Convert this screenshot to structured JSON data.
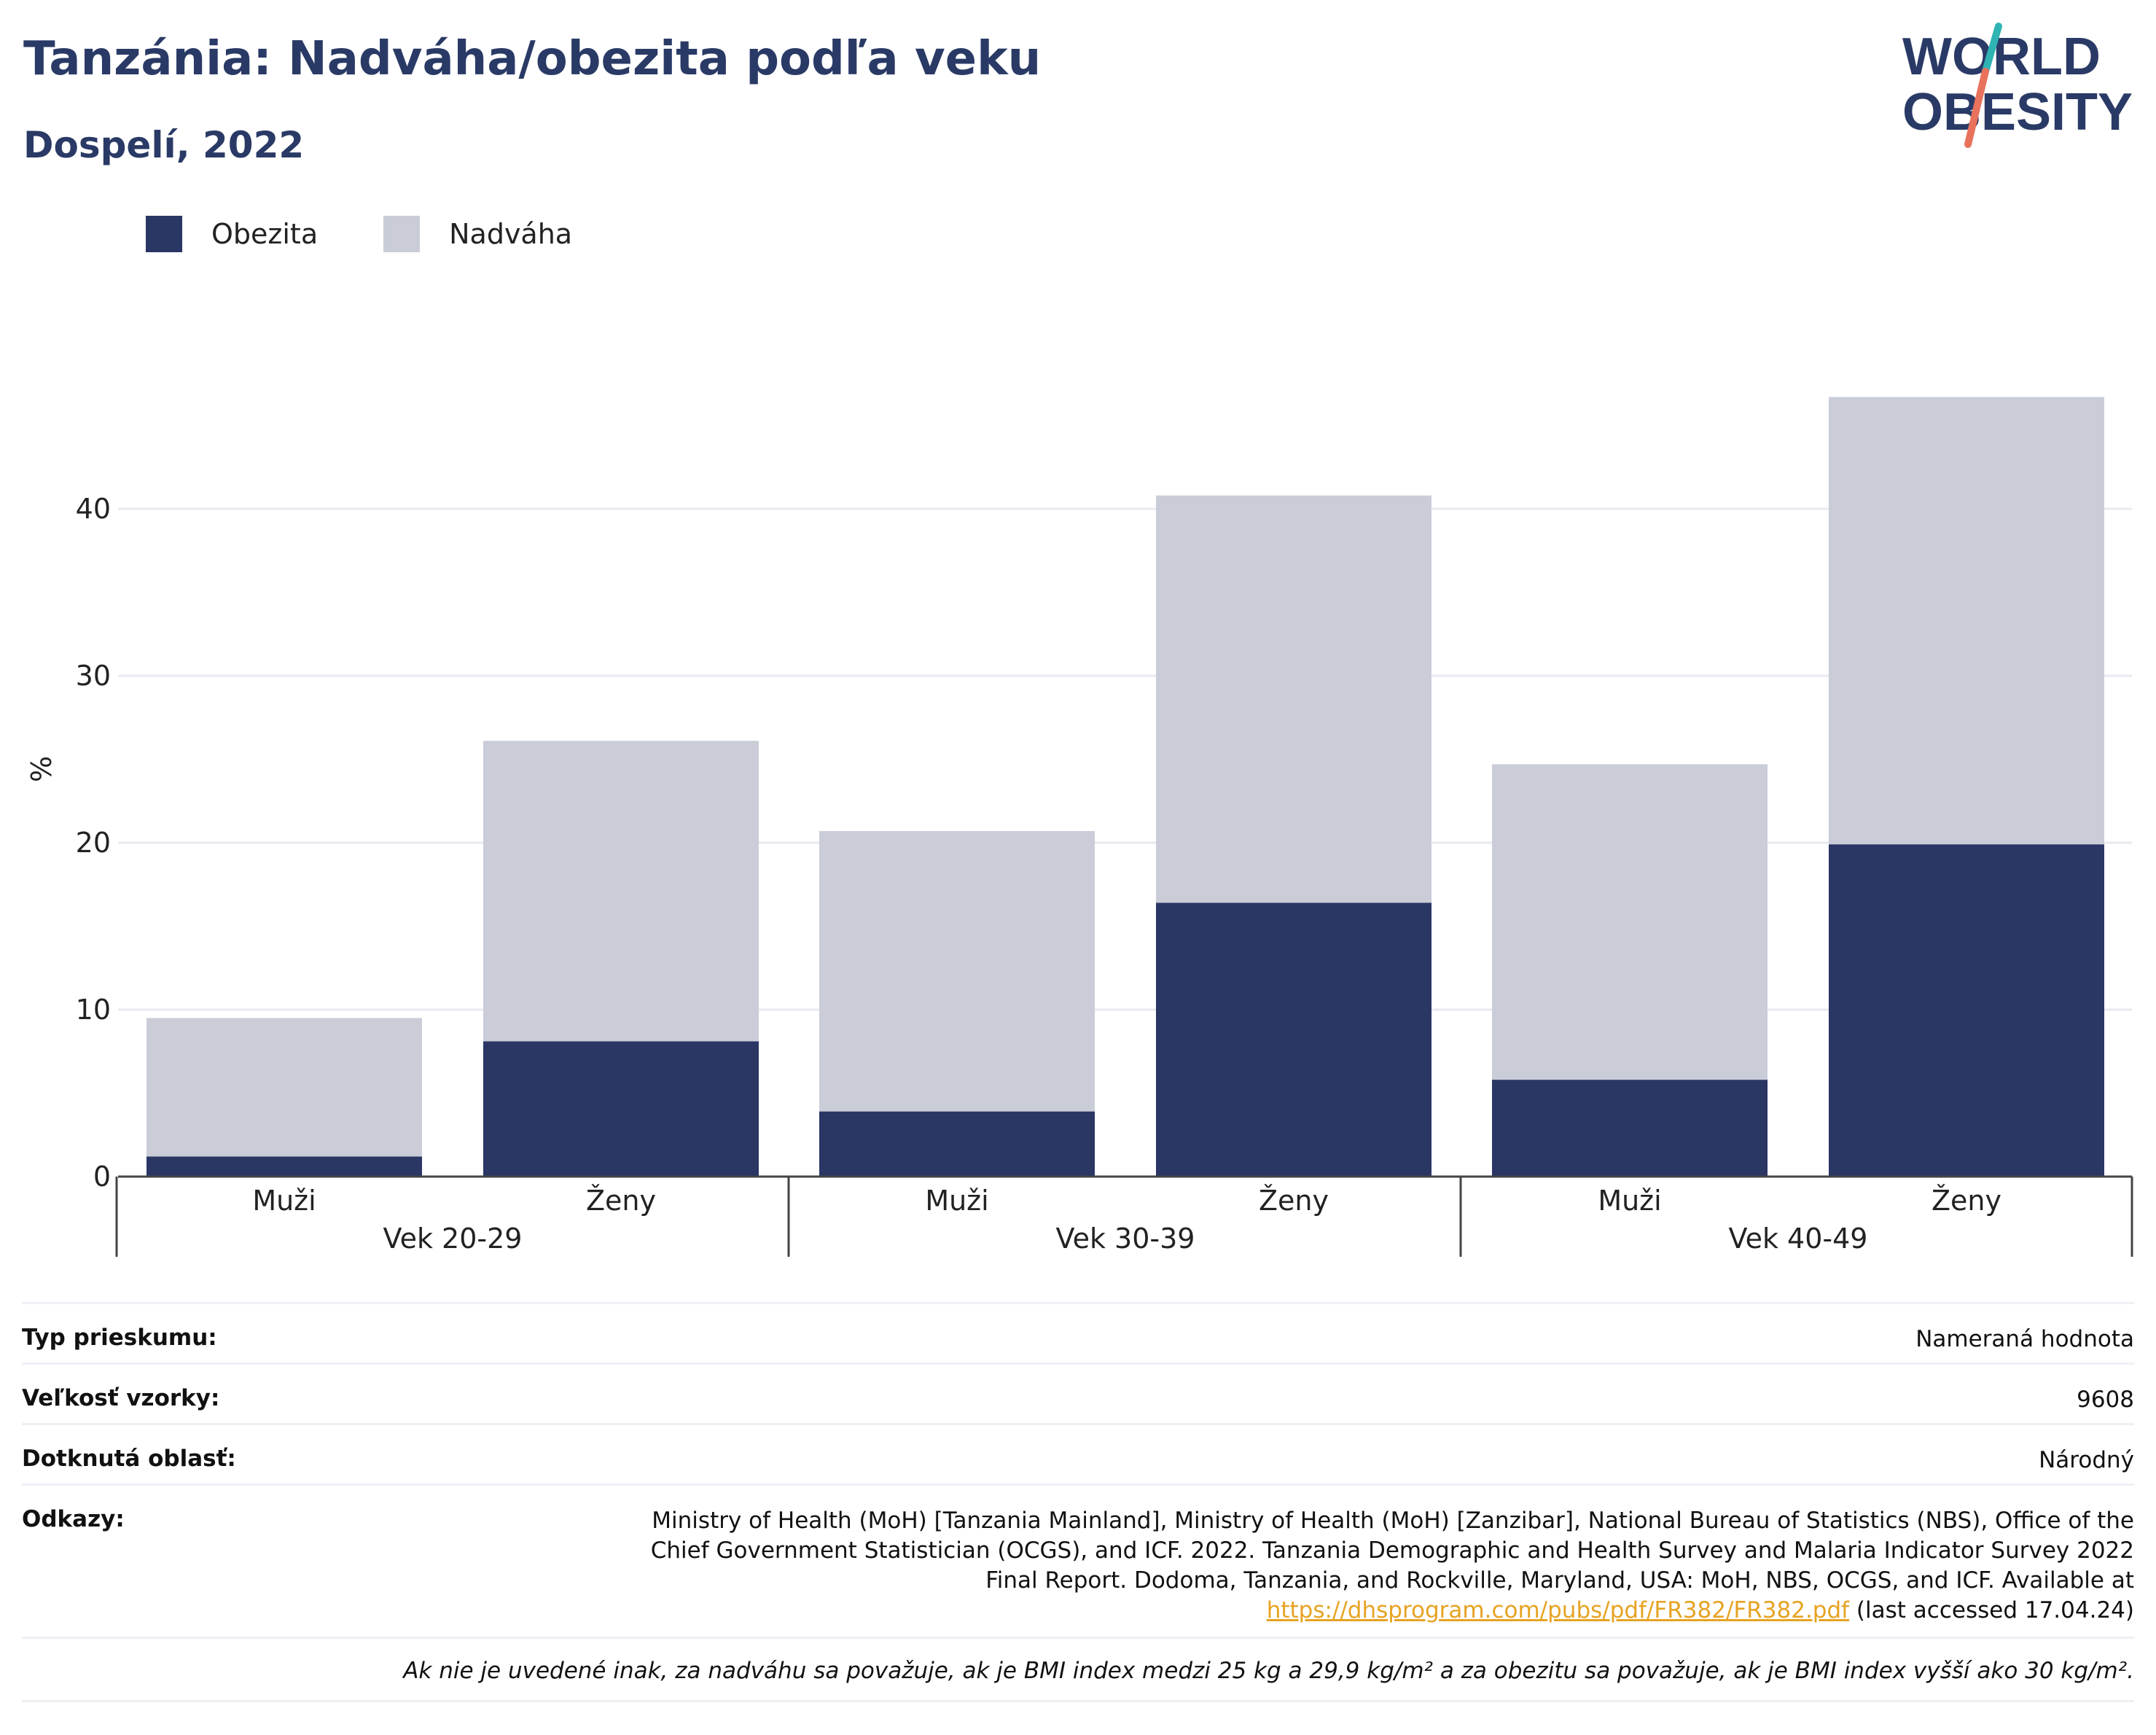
{
  "title": "Tanzánia: Nadváha/obezita podľa veku",
  "subtitle": "Dospelí, 2022",
  "logo": {
    "line1": "WORLD",
    "line2": "OBESITY"
  },
  "colors": {
    "obesity": "#2a3664",
    "overweight": "#cacdd8",
    "title": "#2a3a66",
    "link": "#e6a323"
  },
  "legend": {
    "obesity": "Obezita",
    "overweight": "Nadváha"
  },
  "chart_data": {
    "type": "bar",
    "stacked": true,
    "ylabel": "%",
    "ylim": [
      0,
      50
    ],
    "yticks": [
      0,
      10,
      20,
      30,
      40
    ],
    "grid": true,
    "legend_position": "top-left",
    "groups": [
      "Vek 20-29",
      "Vek 30-39",
      "Vek 40-49"
    ],
    "categories": [
      "Muži",
      "Ženy",
      "Muži",
      "Ženy",
      "Muži",
      "Ženy"
    ],
    "series": [
      {
        "name": "Obezita",
        "values": [
          1.2,
          8.1,
          3.9,
          16.4,
          5.8,
          19.9
        ]
      },
      {
        "name": "Nadváha",
        "values": [
          8.3,
          18.0,
          16.8,
          24.4,
          18.9,
          26.8
        ]
      }
    ]
  },
  "info": {
    "survey_type_label": "Typ prieskumu:",
    "survey_type_value": "Nameraná hodnota",
    "sample_size_label": "Veľkosť vzorky:",
    "sample_size_value": "9608",
    "area_label": "Dotknutá oblasť:",
    "area_value": "Národný",
    "refs_label": "Odkazy:",
    "refs_text": "Ministry of Health (MoH) [Tanzania Mainland], Ministry of Health (MoH) [Zanzibar], National Bureau of Statistics (NBS), Office of the Chief Government Statistician (OCGS), and ICF. 2022. Tanzania Demographic and Health Survey and Malaria Indicator Survey 2022 Final Report. Dodoma, Tanzania, and Rockville, Maryland, USA: MoH, NBS, OCGS, and ICF. Available at",
    "refs_link": "https://dhsprogram.com/pubs/pdf/FR382/FR382.pdf",
    "refs_suffix": " (last accessed 17.04.24)",
    "note": "Ak nie je uvedené inak, za nadváhu sa považuje, ak je BMI index medzi 25 kg a 29,9 kg/m² a za obezitu sa považuje, ak je BMI index vyšší ako 30 kg/m²."
  }
}
